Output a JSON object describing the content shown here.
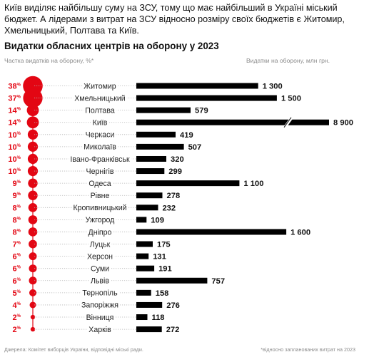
{
  "intro": "Київ виділяє найбільшу суму на ЗСУ, тому що має найбільший в Україні міський бюджет. А лідерами з витрат на ЗСУ відносно розміру своїх бюджетів є Житомир, Хмельницький, Полтава та Київ.",
  "title": "Видатки обласних центрів на оборону у 2023",
  "left_header": "Частка видатків на оборону, %*",
  "right_header": "Видатки на оборону, млн грн.",
  "source": "Джерела: Комітет виборців України, відповідні міські ради.",
  "footnote": "*відносно запланованих витрат на 2023",
  "colors": {
    "accent": "#e30613",
    "bar": "#000000"
  },
  "chart_data": {
    "type": "bar",
    "orientation": "horizontal",
    "title": "Видатки обласних центрів на оборону у 2023",
    "percent_symbol": "%",
    "axis_break_on": "Київ",
    "categories": [
      "Житомир",
      "Хмельницький",
      "Полтава",
      "Київ",
      "Черкаси",
      "Миколаїв",
      "Івано-Франківськ",
      "Чернігів",
      "Одеса",
      "Рівне",
      "Кропивницький",
      "Ужгород",
      "Дніпро",
      "Луцьк",
      "Херсон",
      "Суми",
      "Львів",
      "Тернопіль",
      "Запоріжжя",
      "Вінниця",
      "Харків"
    ],
    "series": [
      {
        "name": "Частка видатків на оборону, %*",
        "values": [
          38,
          37,
          14,
          14,
          10,
          10,
          10,
          10,
          9,
          9,
          8,
          8,
          8,
          7,
          6,
          6,
          6,
          5,
          4,
          2,
          2
        ]
      },
      {
        "name": "Видатки на оборону, млн грн.",
        "values": [
          1300,
          1500,
          579,
          8900,
          419,
          507,
          320,
          299,
          1100,
          278,
          232,
          109,
          1600,
          175,
          131,
          191,
          757,
          158,
          276,
          118,
          272
        ],
        "labels": [
          "1 300",
          "1 500",
          "579",
          "8 900",
          "419",
          "507",
          "320",
          "299",
          "1 100",
          "278",
          "232",
          "109",
          "1 600",
          "175",
          "131",
          "191",
          "757",
          "158",
          "276",
          "118",
          "272"
        ]
      }
    ]
  }
}
